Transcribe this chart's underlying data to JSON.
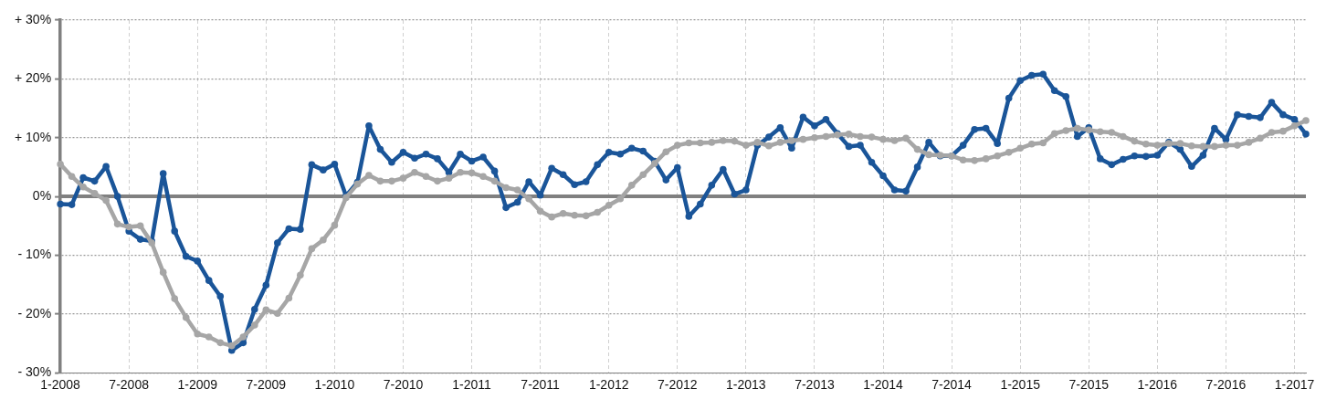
{
  "chart_data": {
    "type": "line",
    "categories": [
      "1-2008",
      null,
      null,
      null,
      null,
      null,
      "7-2008",
      null,
      null,
      null,
      null,
      null,
      "1-2009",
      null,
      null,
      null,
      null,
      null,
      "7-2009",
      null,
      null,
      null,
      null,
      null,
      "1-2010",
      null,
      null,
      null,
      null,
      null,
      "7-2010",
      null,
      null,
      null,
      null,
      null,
      "1-2011",
      null,
      null,
      null,
      null,
      null,
      "7-2011",
      null,
      null,
      null,
      null,
      null,
      "1-2012",
      null,
      null,
      null,
      null,
      null,
      "7-2012",
      null,
      null,
      null,
      null,
      null,
      "1-2013",
      null,
      null,
      null,
      null,
      null,
      "7-2013",
      null,
      null,
      null,
      null,
      null,
      "1-2014",
      null,
      null,
      null,
      null,
      null,
      "7-2014",
      null,
      null,
      null,
      null,
      null,
      "1-2015",
      null,
      null,
      null,
      null,
      null,
      "7-2015",
      null,
      null,
      null,
      null,
      null,
      "1-2016",
      null,
      null,
      null,
      null,
      null,
      "7-2016",
      null,
      null,
      null,
      null,
      null,
      "1-2017",
      null
    ],
    "series": [
      {
        "color": "#a6a6a6",
        "values": [
          5.5,
          3.4,
          1.6,
          0.5,
          -0.7,
          -4.7,
          -5.2,
          -5.0,
          -7.9,
          -12.9,
          -17.4,
          -20.6,
          -23.4,
          -23.9,
          -24.9,
          -25.4,
          -23.9,
          -21.9,
          -19.3,
          -19.9,
          -17.3,
          -13.4,
          -8.9,
          -7.4,
          -4.9,
          -0.2,
          2.1,
          3.6,
          2.6,
          2.6,
          3.1,
          4.1,
          3.4,
          2.6,
          3.1,
          4.1,
          4.0,
          3.4,
          2.6,
          1.5,
          1.1,
          -0.4,
          -2.5,
          -3.5,
          -2.9,
          -3.2,
          -3.3,
          -2.7,
          -1.5,
          -0.4,
          1.9,
          3.7,
          5.6,
          7.6,
          8.7,
          9.1,
          9.1,
          9.2,
          9.5,
          9.4,
          8.7,
          9.2,
          8.6,
          9.2,
          9.5,
          9.7,
          10.0,
          10.2,
          10.5,
          10.6,
          10.2,
          10.1,
          9.7,
          9.5,
          9.9,
          8.0,
          7.1,
          7.0,
          6.9,
          6.2,
          6.1,
          6.4,
          6.9,
          7.5,
          8.2,
          8.9,
          9.1,
          10.7,
          11.2,
          11.6,
          11.3,
          11.0,
          10.9,
          10.2,
          9.4,
          8.9,
          8.7,
          9.0,
          9.0,
          8.6,
          8.5,
          8.5,
          8.7,
          8.7,
          9.2,
          9.9,
          10.9,
          11.1,
          12.0,
          12.9
        ]
      },
      {
        "color": "#1a5599",
        "values": [
          -1.3,
          -1.4,
          3.2,
          2.6,
          5.1,
          0.0,
          -5.9,
          -7.3,
          -7.6,
          3.9,
          -5.9,
          -10.2,
          -11.0,
          -14.3,
          -17.0,
          -26.2,
          -24.9,
          -19.2,
          -15.1,
          -7.9,
          -5.5,
          -5.6,
          5.4,
          4.5,
          5.5,
          0.1,
          2.4,
          12.0,
          8.0,
          5.8,
          7.5,
          6.5,
          7.2,
          6.4,
          4.1,
          7.2,
          6.0,
          6.7,
          4.3,
          -1.9,
          -1.0,
          2.5,
          0.2,
          4.8,
          3.7,
          2.0,
          2.5,
          5.4,
          7.5,
          7.2,
          8.2,
          7.7,
          6.0,
          2.8,
          4.9,
          -3.4,
          -1.3,
          1.9,
          4.6,
          0.4,
          1.1,
          8.7,
          10.1,
          11.7,
          8.2,
          13.5,
          12.0,
          13.1,
          10.7,
          8.5,
          8.7,
          5.8,
          3.5,
          1.1,
          0.9,
          5.0,
          9.2,
          6.9,
          6.9,
          8.7,
          11.4,
          11.6,
          9.0,
          16.7,
          19.7,
          20.6,
          20.8,
          18.0,
          17.0,
          10.2,
          11.7,
          6.4,
          5.4,
          6.3,
          6.9,
          6.8,
          7.0,
          9.2,
          8.0,
          5.1,
          7.0,
          11.6,
          9.7,
          13.9,
          13.6,
          13.4,
          16.0,
          13.9,
          13.1,
          10.6
        ]
      }
    ],
    "ylim": [
      -30,
      30
    ],
    "yticks": [
      {
        "value": -30,
        "label": "- 30%"
      },
      {
        "value": -20,
        "label": "- 20%"
      },
      {
        "value": -10,
        "label": "- 10%"
      },
      {
        "value": 0,
        "label": "0%"
      },
      {
        "value": 10,
        "label": "+ 10%"
      },
      {
        "value": 20,
        "label": "+ 20%"
      },
      {
        "value": 30,
        "label": "+ 30%"
      }
    ],
    "ref_lines": [
      {
        "axis": "y",
        "value": 0,
        "color": "#808080"
      }
    ],
    "grid": true,
    "legend": false,
    "marker": "circle",
    "line_style": "solid"
  }
}
